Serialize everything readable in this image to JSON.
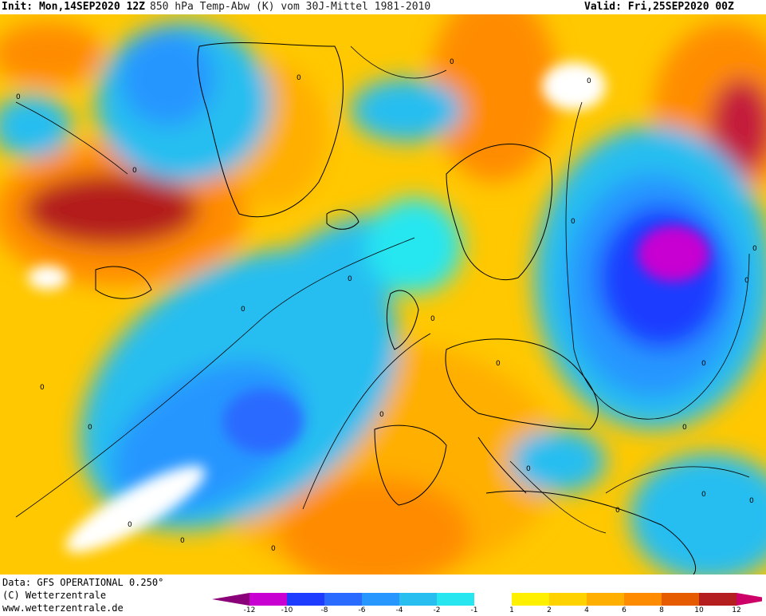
{
  "header": {
    "init": "Init: Mon,14SEP2020 12Z",
    "title": "850 hPa Temp-Abw (K) vom 30J-Mittel 1981-2010",
    "valid": "Valid: Fri,25SEP2020 00Z"
  },
  "footer": {
    "data_source": "Data: GFS OPERATIONAL 0.250°",
    "copyright": "(C) Wetterzentrale",
    "website": "www.wetterzentrale.de"
  },
  "legend": {
    "tick_labels": [
      "-12",
      "-10",
      "-8",
      "-6",
      "-4",
      "-2",
      "-1",
      "1",
      "2",
      "4",
      "6",
      "8",
      "10",
      "12"
    ],
    "colors": [
      "#8a0078",
      "#c800d2",
      "#1e3cff",
      "#2a6bff",
      "#2896ff",
      "#28bef0",
      "#28e6f0",
      "#ffffff",
      "#fff000",
      "#ffd200",
      "#ffaf00",
      "#ff8c00",
      "#e65a00",
      "#b41e1e",
      "#cc0066"
    ]
  },
  "map": {
    "labels": [
      "0",
      "0",
      "0",
      "0",
      "0",
      "0",
      "0",
      "0",
      "0",
      "0",
      "0",
      "0",
      "0",
      "0",
      "0",
      "0",
      "0",
      "0",
      "0",
      "0",
      "0",
      "0",
      "0",
      "0"
    ]
  }
}
